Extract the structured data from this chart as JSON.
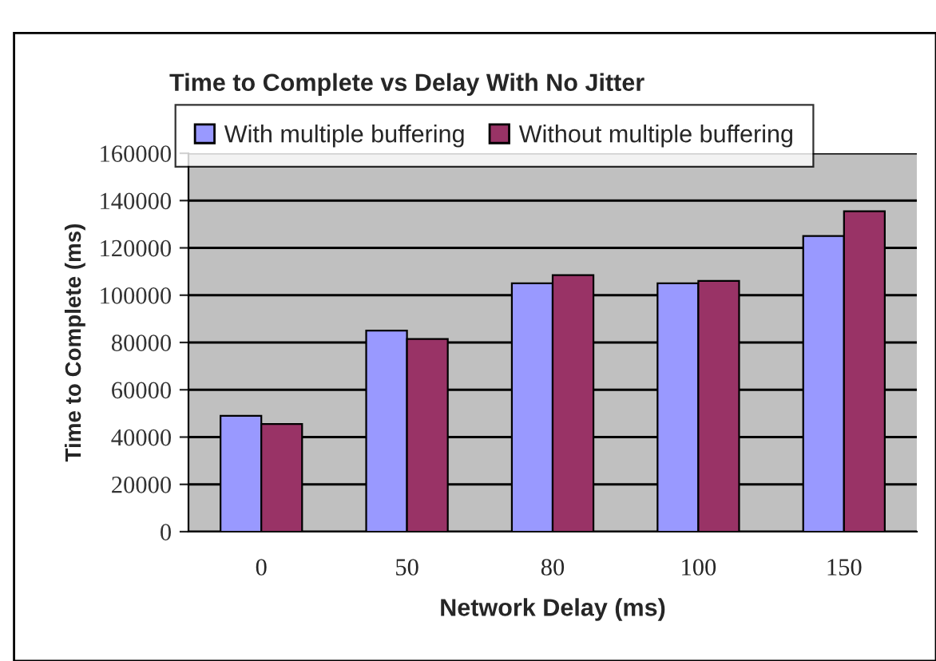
{
  "chart_data": {
    "type": "bar",
    "title": "Time to Complete vs Delay With No Jitter",
    "xlabel": "Network Delay (ms)",
    "ylabel": "Time to Complete (ms)",
    "categories": [
      "0",
      "50",
      "80",
      "100",
      "150"
    ],
    "series": [
      {
        "name": "With multiple buffering",
        "color": "#9999ff",
        "values": [
          49000,
          85000,
          105000,
          105000,
          125000
        ]
      },
      {
        "name": "Without multiple buffering",
        "color": "#993366",
        "values": [
          45500,
          81500,
          108500,
          106000,
          135500
        ]
      }
    ],
    "ylim": [
      0,
      160000
    ],
    "yticks": [
      0,
      20000,
      40000,
      60000,
      80000,
      100000,
      120000,
      140000,
      160000
    ],
    "grid": "y",
    "legend": "top"
  }
}
